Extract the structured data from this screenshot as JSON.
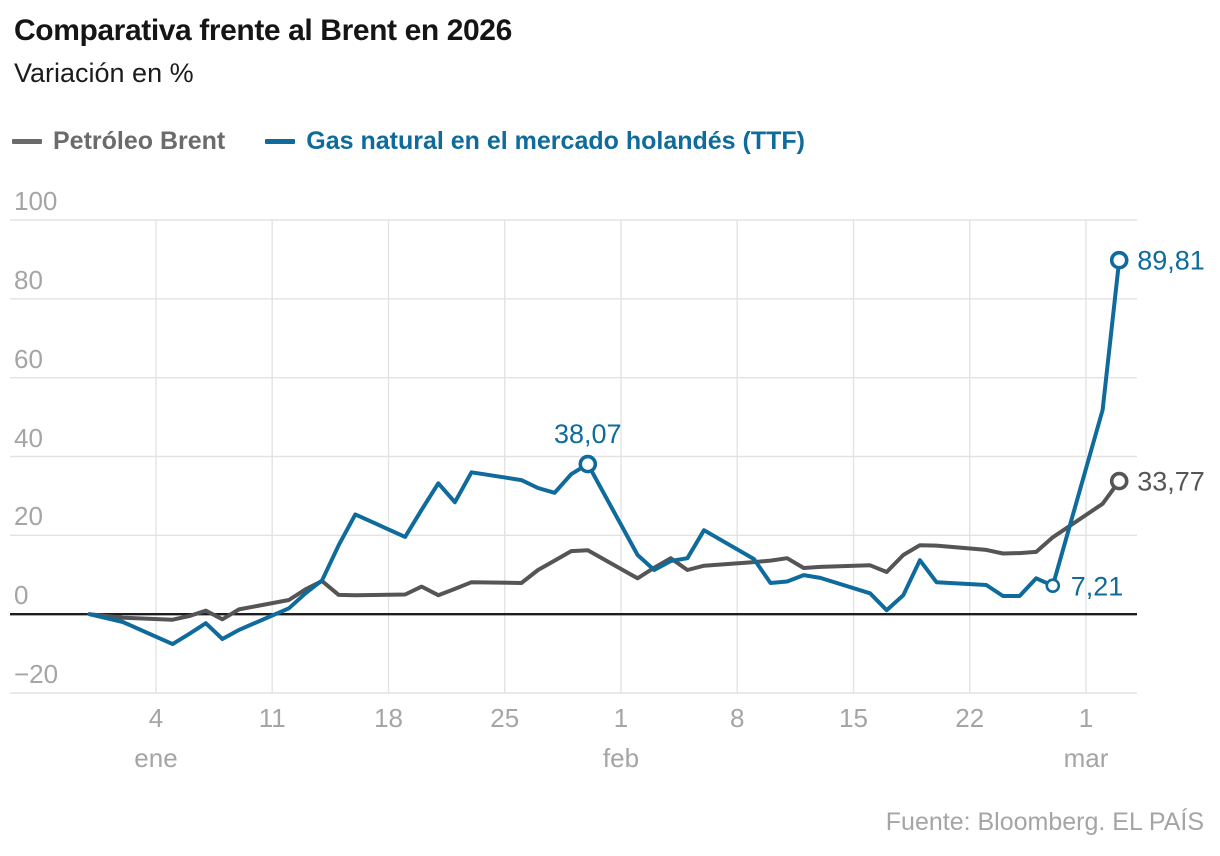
{
  "header": {
    "title": "Comparativa frente al Brent en 2026",
    "subtitle": "Variación en %"
  },
  "legend": {
    "items": [
      {
        "id": "brent",
        "label": "Petróleo Brent",
        "color": "#6b6b6b"
      },
      {
        "id": "gas",
        "label": "Gas natural en el mercado holandés (TTF)",
        "color": "#0E6B9C"
      }
    ]
  },
  "footer": {
    "text": "Fuente: Bloomberg. EL PAÍS"
  },
  "colors": {
    "grid": "#e3e3e3",
    "zero_line": "#1d1d1d",
    "axis_text": "#a5a5a5",
    "brent": "#555557",
    "gas": "#0E6B9C"
  },
  "chart_data": {
    "type": "line",
    "title": "Comparativa frente al Brent en 2026",
    "subtitle": "Variación en %",
    "xlabel": "",
    "ylabel": "Variación en %",
    "ylim": [
      -20,
      100
    ],
    "grid": true,
    "legend_position": "top",
    "y_ticks": [
      {
        "label": "100",
        "value": 100
      },
      {
        "label": "80",
        "value": 80
      },
      {
        "label": "60",
        "value": 60
      },
      {
        "label": "40",
        "value": 40
      },
      {
        "label": "20",
        "value": 20
      },
      {
        "label": "0",
        "value": 0
      },
      {
        "label": "−20",
        "value": -20
      }
    ],
    "x_ticks": [
      {
        "label": "4",
        "day": 4
      },
      {
        "label": "11",
        "day": 11
      },
      {
        "label": "18",
        "day": 18
      },
      {
        "label": "25",
        "day": 25
      },
      {
        "label": "1",
        "day": 32
      },
      {
        "label": "8",
        "day": 39
      },
      {
        "label": "15",
        "day": 46
      },
      {
        "label": "22",
        "day": 53
      },
      {
        "label": "1",
        "day": 60
      }
    ],
    "month_labels": [
      {
        "text": "ene",
        "day": 4
      },
      {
        "text": "feb",
        "day": 32
      },
      {
        "text": "mar",
        "day": 60
      }
    ],
    "series": [
      {
        "id": "brent",
        "name": "Petróleo Brent",
        "color": "#555557",
        "points": [
          [
            "31 dic",
            0,
            0
          ],
          [
            "2 ene",
            2,
            -0.9
          ],
          [
            "5 ene",
            5,
            -1.4
          ],
          [
            "6 ene",
            6,
            -0.5
          ],
          [
            "7 ene",
            7,
            0.9
          ],
          [
            "8 ene",
            8,
            -1.3
          ],
          [
            "9 ene",
            9,
            1.2
          ],
          [
            "12 ene",
            12,
            3.6
          ],
          [
            "13 ene",
            13,
            6.3
          ],
          [
            "14 ene",
            14,
            8.4
          ],
          [
            "15 ene",
            15,
            4.9
          ],
          [
            "16 ene",
            16,
            4.8
          ],
          [
            "19 ene",
            19,
            5.0
          ],
          [
            "20 ene",
            20,
            7.0
          ],
          [
            "21 ene",
            21,
            4.8
          ],
          [
            "22 ene",
            22,
            6.4
          ],
          [
            "23 ene",
            23,
            8.1
          ],
          [
            "26 ene",
            26,
            7.9
          ],
          [
            "27 ene",
            27,
            11.2
          ],
          [
            "28 ene",
            28,
            13.6
          ],
          [
            "29 ene",
            29,
            16.0
          ],
          [
            "30 ene",
            30,
            16.2
          ],
          [
            "2 feb",
            33,
            9.1
          ],
          [
            "3 feb",
            34,
            11.8
          ],
          [
            "4 feb",
            35,
            14.2
          ],
          [
            "5 feb",
            36,
            11.2
          ],
          [
            "6 feb",
            37,
            12.3
          ],
          [
            "9 feb",
            40,
            13.2
          ],
          [
            "10 feb",
            41,
            13.6
          ],
          [
            "11 feb",
            42,
            14.2
          ],
          [
            "12 feb",
            43,
            11.7
          ],
          [
            "13 feb",
            44,
            12.0
          ],
          [
            "16 feb",
            47,
            12.4
          ],
          [
            "17 feb",
            48,
            10.7
          ],
          [
            "18 feb",
            49,
            15.0
          ],
          [
            "19 feb",
            50,
            17.5
          ],
          [
            "20 feb",
            51,
            17.4
          ],
          [
            "23 feb",
            54,
            16.3
          ],
          [
            "24 feb",
            55,
            15.4
          ],
          [
            "25 feb",
            56,
            15.5
          ],
          [
            "26 feb",
            57,
            15.8
          ],
          [
            "27 feb",
            58,
            19.5
          ],
          [
            "2 mar",
            61,
            28.0
          ],
          [
            "3 mar",
            62,
            33.77
          ]
        ]
      },
      {
        "id": "gas",
        "name": "Gas natural en el mercado holandés (TTF)",
        "color": "#0E6B9C",
        "points": [
          [
            "31 dic",
            0,
            0
          ],
          [
            "2 ene",
            2,
            -2.0
          ],
          [
            "5 ene",
            5,
            -7.6
          ],
          [
            "6 ene",
            6,
            -5.0
          ],
          [
            "7 ene",
            7,
            -2.3
          ],
          [
            "8 ene",
            8,
            -6.3
          ],
          [
            "9 ene",
            9,
            -4.0
          ],
          [
            "12 ene",
            12,
            1.5
          ],
          [
            "13 ene",
            13,
            5.3
          ],
          [
            "14 ene",
            14,
            8.6
          ],
          [
            "15 ene",
            15,
            17.5
          ],
          [
            "16 ene",
            16,
            25.3
          ],
          [
            "19 ene",
            19,
            19.6
          ],
          [
            "20 ene",
            20,
            26.5
          ],
          [
            "21 ene",
            21,
            33.2
          ],
          [
            "22 ene",
            22,
            28.4
          ],
          [
            "23 ene",
            23,
            36.0
          ],
          [
            "26 ene",
            26,
            34.0
          ],
          [
            "27 ene",
            27,
            32.0
          ],
          [
            "28 ene",
            28,
            30.8
          ],
          [
            "29 ene",
            29,
            35.5
          ],
          [
            "30 ene",
            30,
            38.07
          ],
          [
            "2 feb",
            33,
            15.0
          ],
          [
            "3 feb",
            34,
            11.2
          ],
          [
            "4 feb",
            35,
            13.5
          ],
          [
            "5 feb",
            36,
            14.2
          ],
          [
            "6 feb",
            37,
            21.3
          ],
          [
            "9 feb",
            40,
            14.0
          ],
          [
            "10 feb",
            41,
            7.9
          ],
          [
            "11 feb",
            42,
            8.3
          ],
          [
            "12 feb",
            43,
            9.9
          ],
          [
            "13 feb",
            44,
            9.2
          ],
          [
            "16 feb",
            47,
            5.3
          ],
          [
            "17 feb",
            48,
            1.0
          ],
          [
            "18 feb",
            49,
            4.8
          ],
          [
            "19 feb",
            50,
            13.7
          ],
          [
            "20 feb",
            51,
            8.1
          ],
          [
            "23 feb",
            54,
            7.4
          ],
          [
            "24 feb",
            55,
            4.6
          ],
          [
            "25 feb",
            56,
            4.6
          ],
          [
            "26 feb",
            57,
            9.1
          ],
          [
            "27 feb",
            58,
            7.21
          ],
          [
            "2 mar",
            61,
            51.8
          ],
          [
            "3 mar",
            62,
            89.81
          ]
        ]
      }
    ],
    "markers": [
      {
        "series": "gas",
        "day": 30,
        "value": 38.07,
        "small": false
      },
      {
        "series": "gas",
        "day": 58,
        "value": 7.21,
        "small": true
      },
      {
        "series": "gas",
        "day": 62,
        "value": 89.81,
        "small": false
      },
      {
        "series": "brent",
        "day": 62,
        "value": 33.77,
        "small": false
      }
    ],
    "annotations": [
      {
        "text": "38,07",
        "series": "gas",
        "day": 30,
        "value": 38.07,
        "placement": "above"
      },
      {
        "text": "89,81",
        "series": "gas",
        "day": 62,
        "value": 89.81,
        "placement": "right"
      },
      {
        "text": "33,77",
        "series": "brent",
        "day": 62,
        "value": 33.77,
        "placement": "right"
      },
      {
        "text": "7,21",
        "series": "gas",
        "day": 58,
        "value": 7.21,
        "placement": "right"
      }
    ]
  }
}
